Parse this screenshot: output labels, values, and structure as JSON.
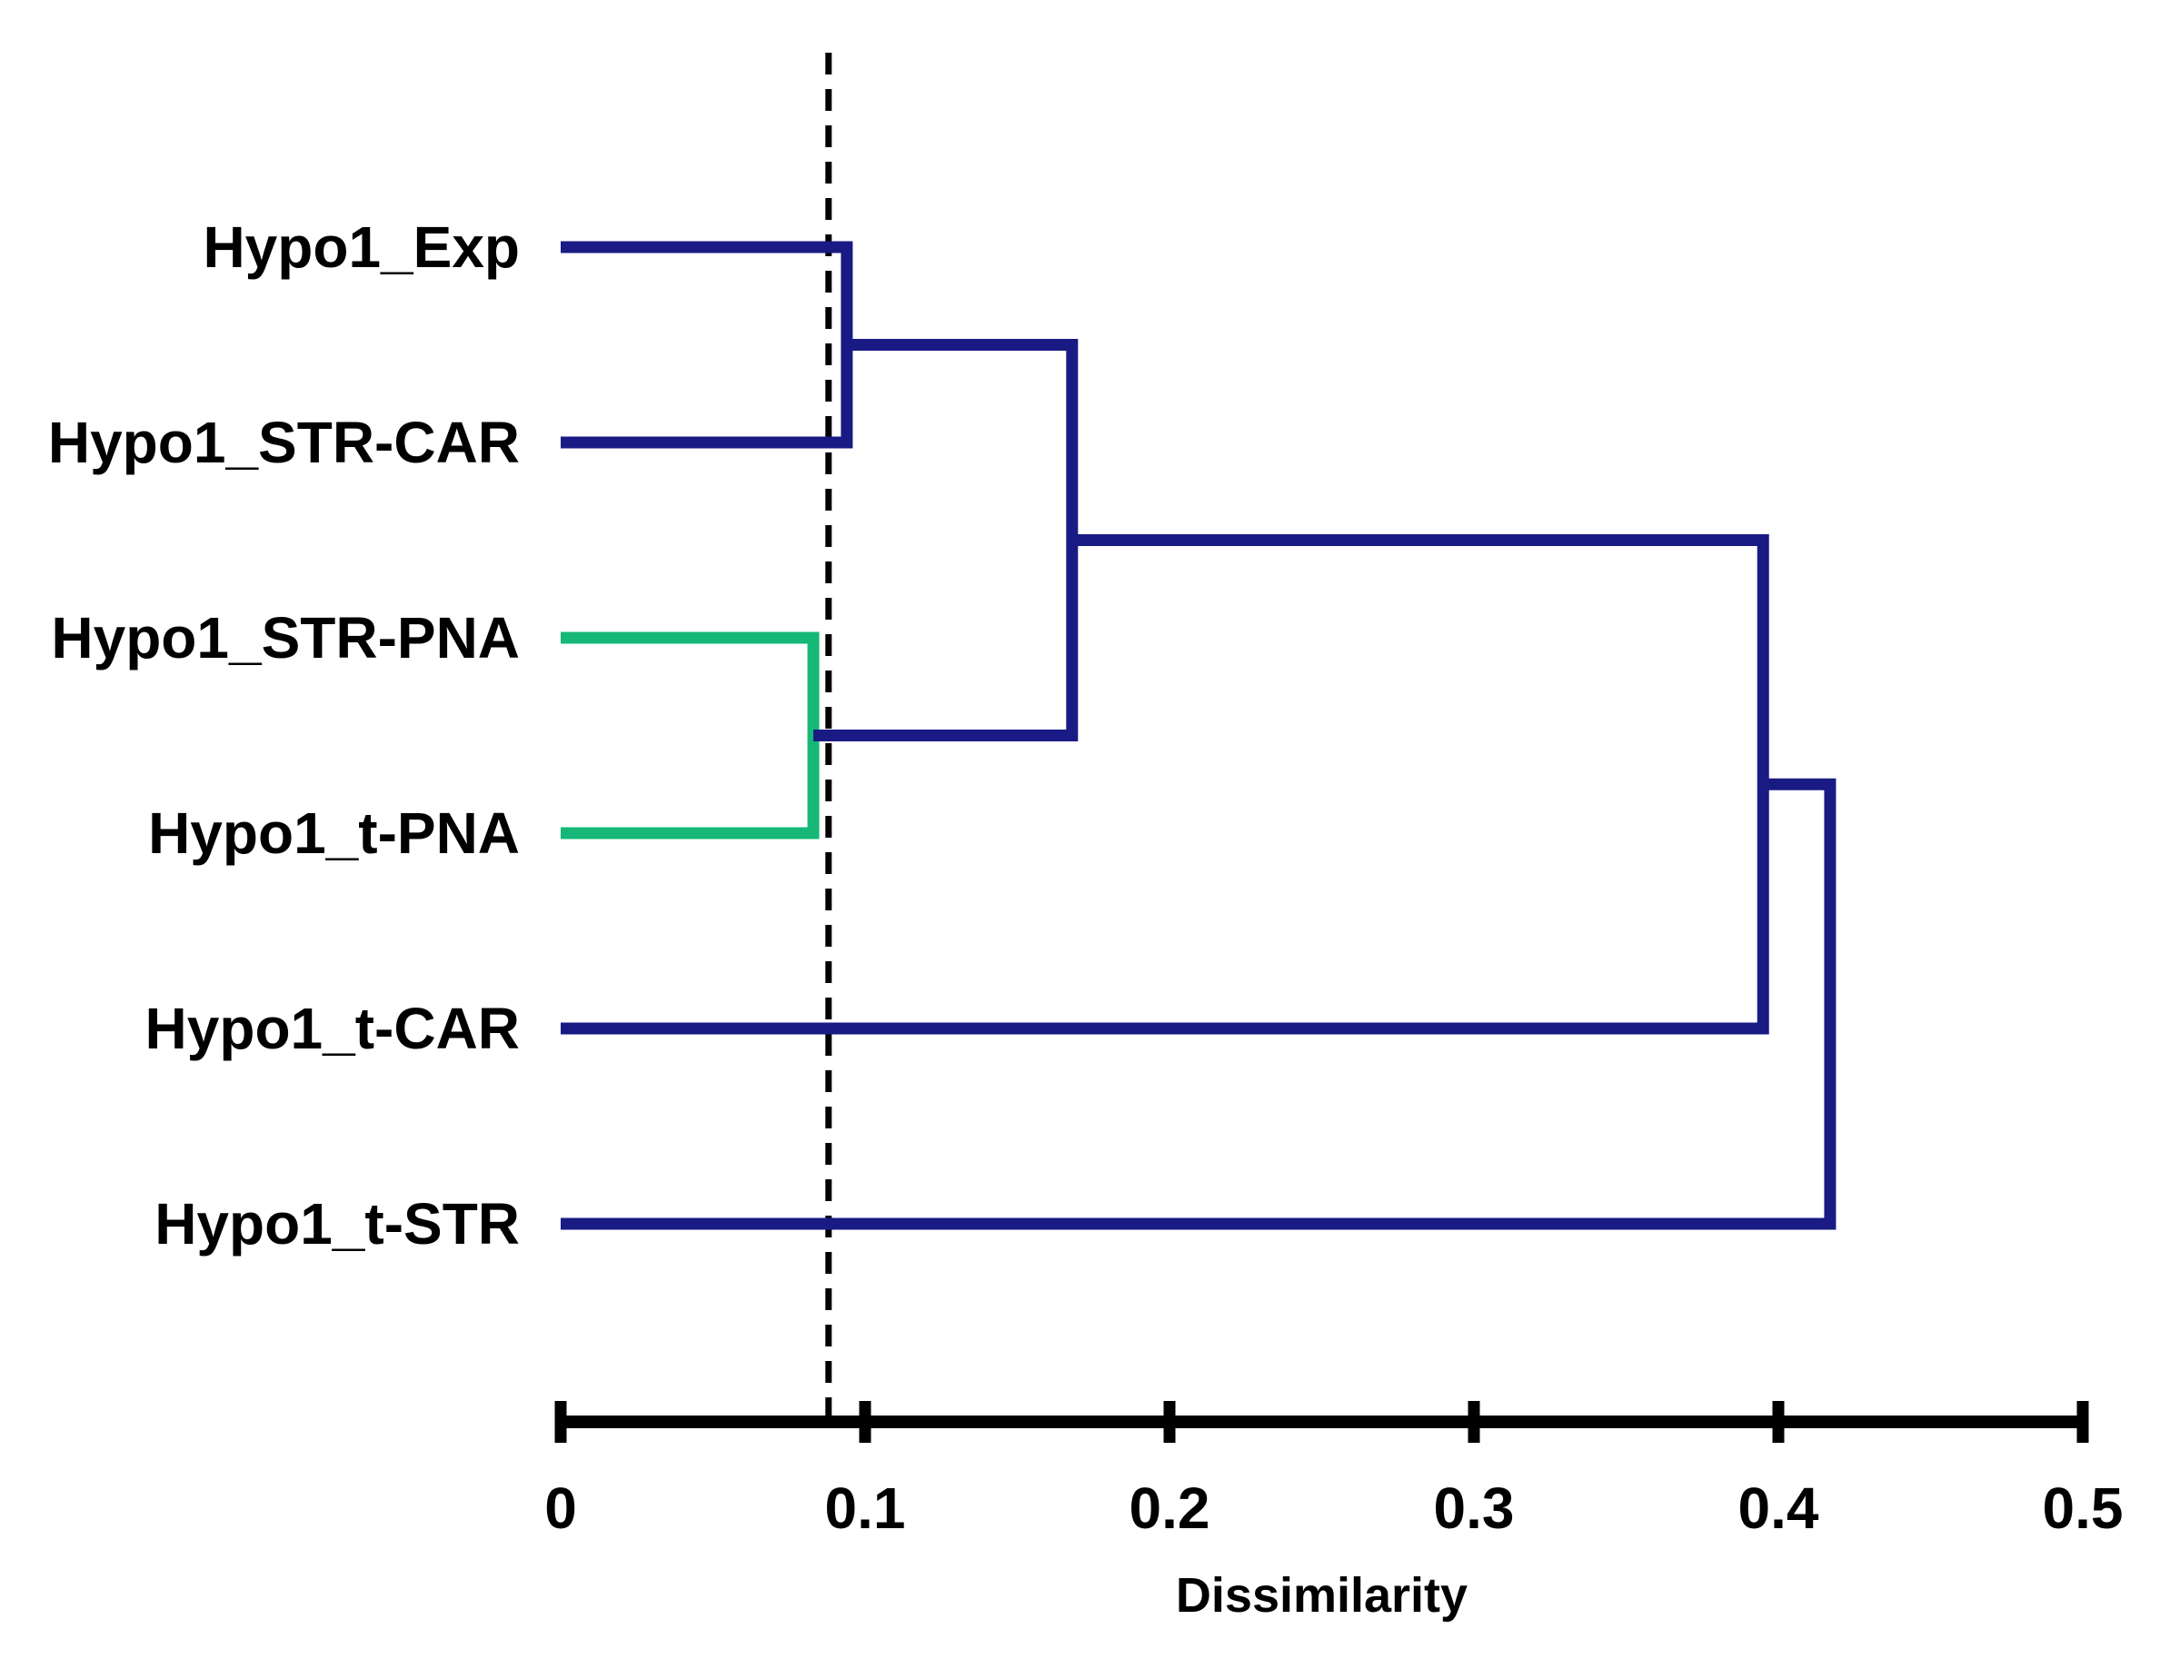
{
  "figure": {
    "background": "#ffffff",
    "kind": "hierarchical-clustering-dendrogram"
  },
  "chart_data": {
    "type": "dendrogram",
    "orientation": "horizontal",
    "title": "",
    "xlabel": "Dissimilarity",
    "xlim": [
      0,
      0.5
    ],
    "grid": false,
    "leaves": [
      "Hypo1_Exp",
      "Hypo1_STR-CAR",
      "Hypo1_STR-PNA",
      "Hypo1_t-PNA",
      "Hypo1_t-CAR",
      "Hypo1_t-STR"
    ],
    "merges": [
      {
        "id": "m1",
        "children": [
          "Hypo1_Exp",
          "Hypo1_STR-CAR"
        ],
        "height": 0.094,
        "color_key": "cluster_blue"
      },
      {
        "id": "m2",
        "children": [
          "Hypo1_STR-PNA",
          "Hypo1_t-PNA"
        ],
        "height": 0.083,
        "color_key": "cluster_green"
      },
      {
        "id": "m3",
        "children": [
          "m1",
          "m2"
        ],
        "height": 0.168,
        "color_key": "cluster_blue"
      },
      {
        "id": "m4",
        "children": [
          "m3",
          "Hypo1_t-CAR"
        ],
        "height": 0.395,
        "color_key": "cluster_blue"
      },
      {
        "id": "m5",
        "children": [
          "m4",
          "Hypo1_t-STR"
        ],
        "height": 0.417,
        "color_key": "cluster_blue"
      }
    ],
    "threshold_line": {
      "value": 0.088,
      "style": "dashed",
      "color": "#000000"
    },
    "x_ticks": [
      {
        "value": 0.0,
        "label": "0"
      },
      {
        "value": 0.1,
        "label": "0.1"
      },
      {
        "value": 0.2,
        "label": "0.2"
      },
      {
        "value": 0.3,
        "label": "0.3"
      },
      {
        "value": 0.4,
        "label": "0.4"
      },
      {
        "value": 0.5,
        "label": "0.5"
      }
    ],
    "colors": {
      "cluster_blue": "#1a1a85",
      "cluster_green": "#15b877",
      "axis": "#000000",
      "text": "#000000"
    },
    "legend": null
  }
}
